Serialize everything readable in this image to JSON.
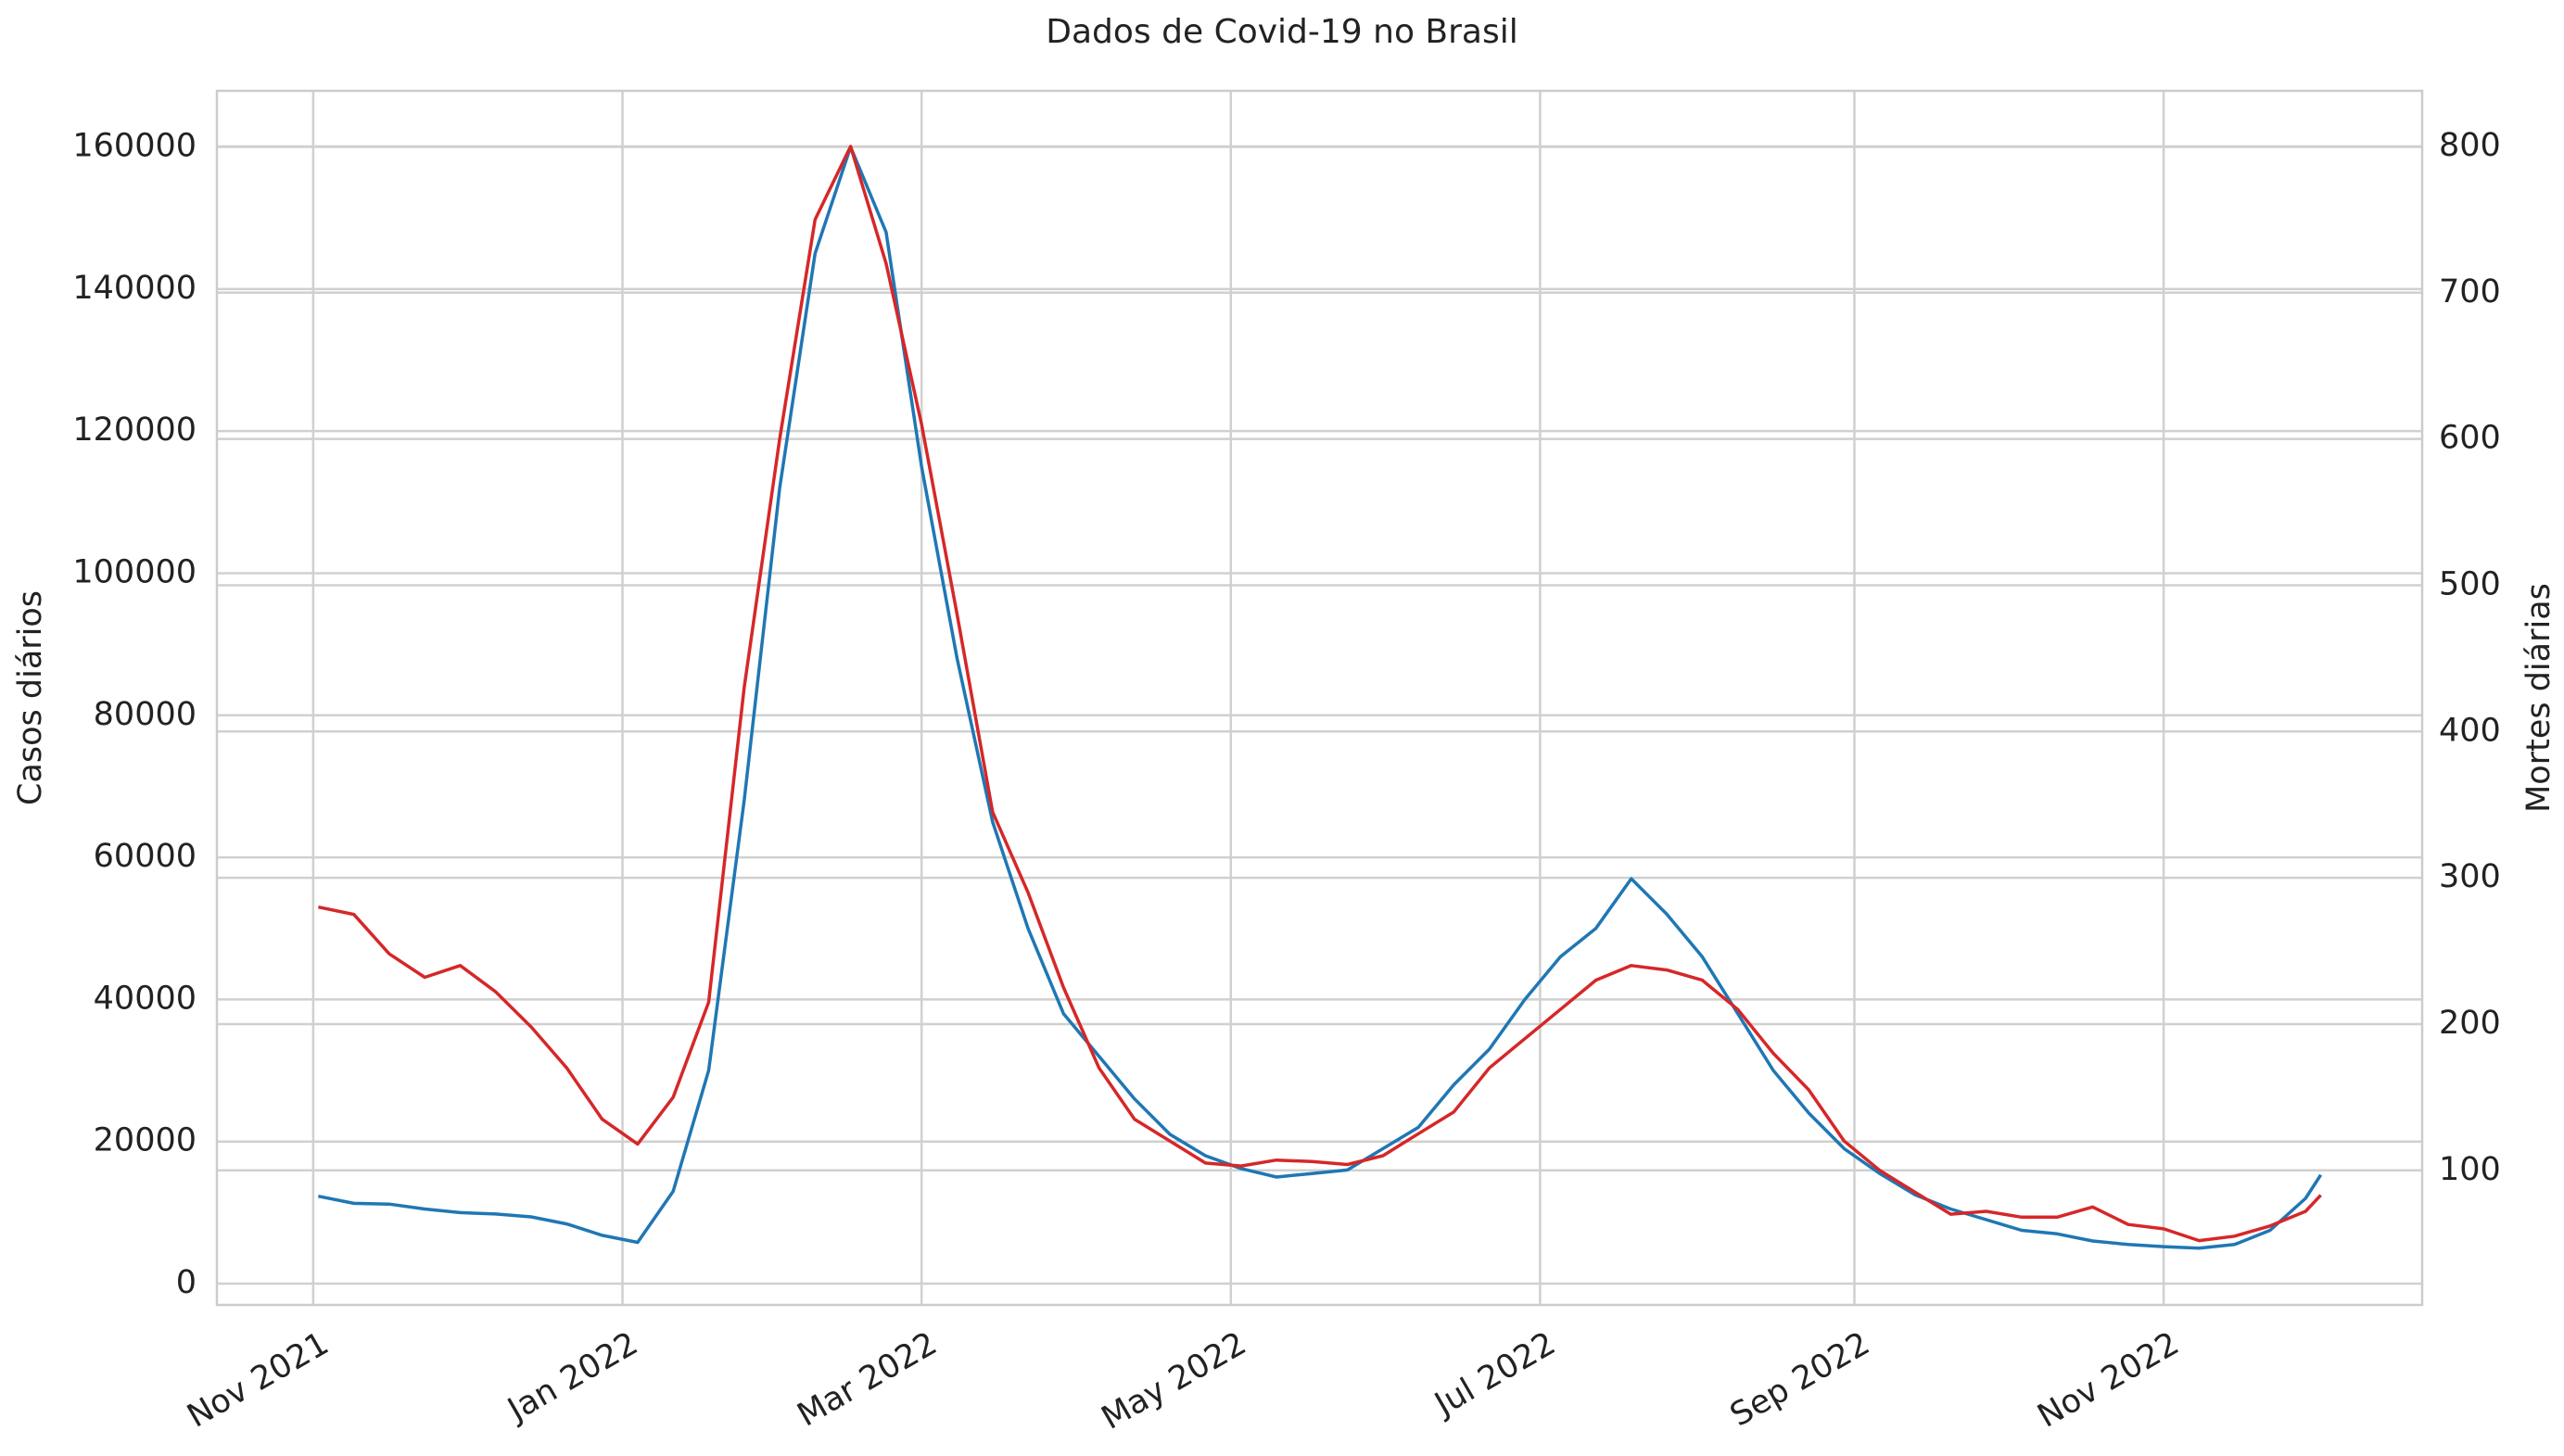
{
  "chart_data": {
    "type": "line",
    "title": "Dados de Covid-19 no Brasil",
    "y_label": "Casos diários",
    "y2_label": "Mortes diárias",
    "grid": true,
    "x": [
      "2021-11-02",
      "2021-11-09",
      "2021-11-16",
      "2021-11-23",
      "2021-11-30",
      "2021-12-07",
      "2021-12-14",
      "2021-12-21",
      "2021-12-28",
      "2022-01-04",
      "2022-01-11",
      "2022-01-18",
      "2022-01-25",
      "2022-02-01",
      "2022-02-08",
      "2022-02-15",
      "2022-02-22",
      "2022-03-01",
      "2022-03-08",
      "2022-03-15",
      "2022-03-22",
      "2022-03-29",
      "2022-04-05",
      "2022-04-12",
      "2022-04-19",
      "2022-04-26",
      "2022-05-03",
      "2022-05-10",
      "2022-05-17",
      "2022-05-24",
      "2022-05-31",
      "2022-06-07",
      "2022-06-14",
      "2022-06-21",
      "2022-06-28",
      "2022-07-05",
      "2022-07-12",
      "2022-07-19",
      "2022-07-26",
      "2022-08-02",
      "2022-08-09",
      "2022-08-16",
      "2022-08-23",
      "2022-08-30",
      "2022-09-06",
      "2022-09-13",
      "2022-09-20",
      "2022-09-27",
      "2022-10-04",
      "2022-10-11",
      "2022-10-18",
      "2022-10-25",
      "2022-11-01",
      "2022-11-08",
      "2022-11-15",
      "2022-11-22",
      "2022-11-29",
      "2022-12-02"
    ],
    "series": [
      {
        "name": "Casos diários",
        "color": "#1f77b4",
        "axis": "y",
        "values": [
          12300,
          11300,
          11200,
          10500,
          10000,
          9800,
          9400,
          8400,
          6800,
          5800,
          13000,
          30000,
          68000,
          112000,
          145000,
          160000,
          148000,
          115000,
          88000,
          65000,
          50000,
          38000,
          32000,
          26000,
          21000,
          18000,
          16200,
          15000,
          15500,
          16000,
          19000,
          22000,
          28000,
          33000,
          40000,
          46000,
          50000,
          57000,
          52000,
          46000,
          38000,
          30000,
          24000,
          19000,
          15500,
          12500,
          10500,
          9000,
          7500,
          7000,
          6000,
          5500,
          5200,
          5000,
          5500,
          7500,
          12000,
          15300
        ]
      },
      {
        "name": "Mortes diárias",
        "color": "#d62728",
        "axis": "y2",
        "values": [
          280,
          275,
          248,
          232,
          240,
          222,
          198,
          170,
          135,
          118,
          150,
          215,
          430,
          600,
          750,
          800,
          720,
          610,
          480,
          345,
          290,
          225,
          170,
          135,
          120,
          105,
          103,
          107,
          106,
          104,
          110,
          125,
          140,
          170,
          190,
          210,
          230,
          240,
          237,
          230,
          210,
          180,
          155,
          120,
          100,
          85,
          70,
          72,
          68,
          68,
          75,
          63,
          60,
          52,
          55,
          62,
          72,
          83
        ]
      }
    ],
    "xlim": [
      "2021-10-13",
      "2022-12-22"
    ],
    "xticks": [
      {
        "value": "2021-11-01",
        "label": "Nov 2021"
      },
      {
        "value": "2022-01-01",
        "label": "Jan 2022"
      },
      {
        "value": "2022-03-01",
        "label": "Mar 2022"
      },
      {
        "value": "2022-05-01",
        "label": "May 2022"
      },
      {
        "value": "2022-07-01",
        "label": "Jul 2022"
      },
      {
        "value": "2022-09-01",
        "label": "Sep 2022"
      },
      {
        "value": "2022-11-01",
        "label": "Nov 2022"
      }
    ],
    "ylim": [
      -3000,
      167900
    ],
    "yticks": [
      0,
      20000,
      40000,
      60000,
      80000,
      100000,
      120000,
      140000,
      160000
    ],
    "y2lim": [
      8,
      838
    ],
    "y2ticks": [
      100,
      200,
      300,
      400,
      500,
      600,
      700,
      800
    ]
  }
}
